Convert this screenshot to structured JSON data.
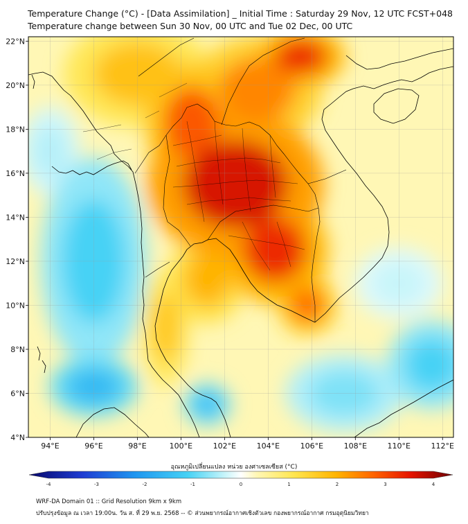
{
  "header": {
    "title_line1": "Temperature Change (°C) - [Data Assimilation] _ Initial Time : Saturday 29 Nov, 12 UTC FCST+048",
    "title_line2": "Temperature change between Sun 30 Nov, 00 UTC and Tue 02 Dec, 00 UTC"
  },
  "map": {
    "lon_range": [
      93,
      112.5
    ],
    "lat_range": [
      4,
      22.2
    ],
    "lon_ticks": [
      {
        "value": 94,
        "label": "94°E"
      },
      {
        "value": 96,
        "label": "96°E"
      },
      {
        "value": 98,
        "label": "98°E"
      },
      {
        "value": 100,
        "label": "100°E"
      },
      {
        "value": 102,
        "label": "102°E"
      },
      {
        "value": 104,
        "label": "104°E"
      },
      {
        "value": 106,
        "label": "106°E"
      },
      {
        "value": 108,
        "label": "108°E"
      },
      {
        "value": 110,
        "label": "110°E"
      },
      {
        "value": 112,
        "label": "112°E"
      }
    ],
    "lat_ticks": [
      {
        "value": 4,
        "label": "4°N"
      },
      {
        "value": 6,
        "label": "6°N"
      },
      {
        "value": 8,
        "label": "8°N"
      },
      {
        "value": 10,
        "label": "10°N"
      },
      {
        "value": 12,
        "label": "12°N"
      },
      {
        "value": 14,
        "label": "14°N"
      },
      {
        "value": 16,
        "label": "16°N"
      },
      {
        "value": 18,
        "label": "18°N"
      },
      {
        "value": 20,
        "label": "20°N"
      },
      {
        "value": 22,
        "label": "22°N"
      }
    ],
    "background_color": "#fff7b5",
    "anomalies": [
      {
        "name": "central-thailand-core",
        "lon": 102.5,
        "lat": 15.5,
        "rx_deg": 3.0,
        "ry_deg": 2.5,
        "value": 3.3
      },
      {
        "name": "cambodia-core",
        "lon": 104.3,
        "lat": 12.5,
        "rx_deg": 1.8,
        "ry_deg": 1.8,
        "value": 3.0
      },
      {
        "name": "upper-thailand",
        "lon": 100.5,
        "lat": 18.3,
        "rx_deg": 1.6,
        "ry_deg": 2.0,
        "value": 2.6
      },
      {
        "name": "north-vietnam",
        "lon": 105.5,
        "lat": 21.3,
        "rx_deg": 1.5,
        "ry_deg": 1.0,
        "value": 3.0
      },
      {
        "name": "laos-north",
        "lon": 103.5,
        "lat": 19.8,
        "rx_deg": 2.2,
        "ry_deg": 1.8,
        "value": 2.2
      },
      {
        "name": "north-myanmar",
        "lon": 98.0,
        "lat": 20.5,
        "rx_deg": 2.5,
        "ry_deg": 1.8,
        "value": 1.6
      },
      {
        "name": "gulf-of-thailand-north",
        "lon": 101.2,
        "lat": 11.2,
        "rx_deg": 1.3,
        "ry_deg": 1.5,
        "value": 1.8
      },
      {
        "name": "malay-peninsula",
        "lon": 99.3,
        "lat": 9.0,
        "rx_deg": 0.8,
        "ry_deg": 2.0,
        "value": 1.5
      },
      {
        "name": "mekong-delta",
        "lon": 105.8,
        "lat": 10.0,
        "rx_deg": 1.0,
        "ry_deg": 1.0,
        "value": 2.4
      },
      {
        "name": "andaman-cool",
        "lon": 96.0,
        "lat": 12.0,
        "rx_deg": 1.8,
        "ry_deg": 3.5,
        "value": -1.0
      },
      {
        "name": "andaman-south-cool",
        "lon": 96.0,
        "lat": 6.3,
        "rx_deg": 1.5,
        "ry_deg": 1.0,
        "value": -1.4
      },
      {
        "name": "gulf-cool",
        "lon": 101.2,
        "lat": 5.5,
        "rx_deg": 0.8,
        "ry_deg": 0.7,
        "value": -1.3
      },
      {
        "name": "scs-east-cool",
        "lon": 111.5,
        "lat": 7.3,
        "rx_deg": 1.5,
        "ry_deg": 1.5,
        "value": -1.0
      },
      {
        "name": "scs-south-cool",
        "lon": 107.5,
        "lat": 6.0,
        "rx_deg": 2.0,
        "ry_deg": 1.3,
        "value": -0.7
      },
      {
        "name": "bay-of-bengal-cool",
        "lon": 94.0,
        "lat": 17.0,
        "rx_deg": 1.0,
        "ry_deg": 1.5,
        "value": -0.4
      },
      {
        "name": "vietnam-south-coast-cool",
        "lon": 110.0,
        "lat": 11.0,
        "rx_deg": 1.5,
        "ry_deg": 1.2,
        "value": -0.3
      }
    ],
    "country_borders_color": "#000000"
  },
  "colorbar": {
    "label": "อุณหภูมิเปลี่ยนแปลง หน่วย องศาเซลเซียส (°C)",
    "min": -4,
    "max": 4,
    "ticks": [
      {
        "value": -4,
        "label": "-4"
      },
      {
        "value": -3,
        "label": "-3"
      },
      {
        "value": -2,
        "label": "-2"
      },
      {
        "value": -1,
        "label": "-1"
      },
      {
        "value": 0,
        "label": "0"
      },
      {
        "value": 1,
        "label": "1"
      },
      {
        "value": 2,
        "label": "2"
      },
      {
        "value": 3,
        "label": "3"
      },
      {
        "value": 4,
        "label": "4"
      }
    ],
    "color_stops": [
      {
        "value": -4,
        "color": "#08086b"
      },
      {
        "value": -3,
        "color": "#1e3cd2"
      },
      {
        "value": -2,
        "color": "#1e96f0"
      },
      {
        "value": -1,
        "color": "#46d2f5"
      },
      {
        "value": -0.3,
        "color": "#c8f5fa"
      },
      {
        "value": 0,
        "color": "#ffffff"
      },
      {
        "value": 0.3,
        "color": "#fff7b5"
      },
      {
        "value": 1,
        "color": "#ffe650"
      },
      {
        "value": 1.8,
        "color": "#ffb400"
      },
      {
        "value": 2.5,
        "color": "#ff6400"
      },
      {
        "value": 3.2,
        "color": "#e61400"
      },
      {
        "value": 4,
        "color": "#6e0000"
      }
    ]
  },
  "footer": {
    "line1": "WRF-DA Domain 01 :: Grid Resolution 9km x 9km",
    "line2": "ปรับปรุงข้อมูล ณ เวลา 19:00น. วัน ส. ที่ 29 พ.ย. 2568 -- © ส่วนพยากรณ์อากาศเชิงตัวเลข กองพยากรณ์อากาศ กรมอุตุนิยมวิทยา"
  }
}
